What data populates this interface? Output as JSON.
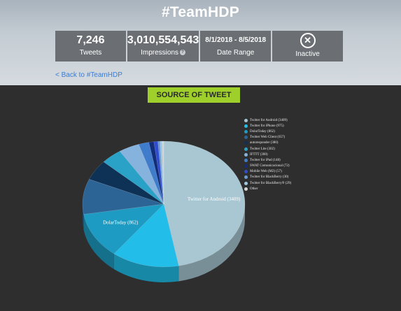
{
  "header": {
    "title": "#TeamHDP"
  },
  "stats": [
    {
      "value": "7,246",
      "label": "Tweets"
    },
    {
      "value": "3,010,554,543",
      "label": "Impressions"
    },
    {
      "value": "8/1/2018 - 8/5/2018",
      "label": "Date Range"
    },
    {
      "value": "",
      "label": "Inactive"
    }
  ],
  "back_link": "< Back to #TeamHDP",
  "section": {
    "title": "SOURCE OF TWEET"
  },
  "chart_data": {
    "type": "pie",
    "title": "",
    "slices": [
      {
        "label": "Twitter for Android (3409)",
        "value": 3409,
        "color": "#a8c7d3"
      },
      {
        "label": "Twitter for iPhone (975)",
        "value": 975,
        "color": "#22bde8"
      },
      {
        "label": "DolarToday (862)",
        "value": 862,
        "color": "#1d9bc2"
      },
      {
        "label": "Twitter Web Client (657)",
        "value": 657,
        "color": "#2c6496"
      },
      {
        "label": "autoresponder (380)",
        "value": 380,
        "color": "#0e3156"
      },
      {
        "label": "Twitter Lite (302)",
        "value": 302,
        "color": "#2aa2c8"
      },
      {
        "label": "IFTTT (300)",
        "value": 300,
        "color": "#86b3de"
      },
      {
        "label": "Twitter for iPad (148)",
        "value": 148,
        "color": "#3f7ccb"
      },
      {
        "label": "SWAT Comunicacional (72)",
        "value": 72,
        "color": "#122d7a"
      },
      {
        "label": "Mobile Web (M2) (57)",
        "value": 57,
        "color": "#2f4bd0"
      },
      {
        "label": "Twitter for BlackBerry (30)",
        "value": 30,
        "color": "#6a9bd2"
      },
      {
        "label": "Twitter for BlackBerry® (29)",
        "value": 29,
        "color": "#9cc7e6"
      },
      {
        "label": "Other",
        "value": 25,
        "color": "#d2d4d6"
      }
    ],
    "slice_labels": [
      "Twitter for Android (3409)",
      "DolarToday (862)"
    ],
    "legend_position": "right"
  }
}
